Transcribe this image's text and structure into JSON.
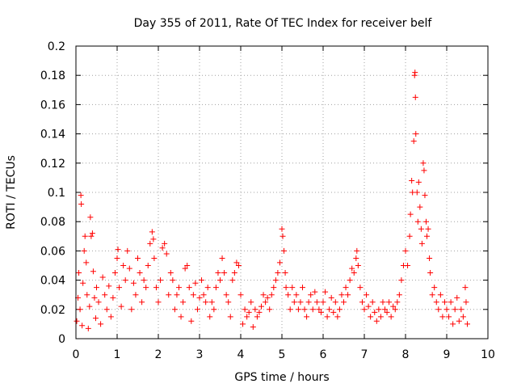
{
  "chart_data": {
    "type": "scatter",
    "title": "Day 355 of 2011, Rate Of TEC Index for receiver belf",
    "xlabel": "GPS time / hours",
    "ylabel": "ROTI / TECUs",
    "xlim": [
      0,
      10
    ],
    "ylim": [
      0,
      0.2
    ],
    "xticks": [
      0,
      1,
      2,
      3,
      4,
      5,
      6,
      7,
      8,
      9,
      10
    ],
    "yticks": [
      0,
      0.02,
      0.04,
      0.06,
      0.08,
      0.1,
      0.12,
      0.14,
      0.16,
      0.18,
      0.2
    ],
    "xtick_labels": [
      "0",
      "1",
      "2",
      "3",
      "4",
      "5",
      "6",
      "7",
      "8",
      "9",
      "10"
    ],
    "ytick_labels": [
      "0",
      "0.02",
      "0.04",
      "0.06",
      "0.08",
      "0.1",
      "0.12",
      "0.14",
      "0.16",
      "0.18",
      "0.2"
    ],
    "grid": true,
    "marker": "+",
    "marker_color": "#ff0000",
    "series": [
      {
        "name": "ROTI",
        "points": [
          [
            0.02,
            0.012
          ],
          [
            0.05,
            0.028
          ],
          [
            0.07,
            0.045
          ],
          [
            0.1,
            0.02
          ],
          [
            0.12,
            0.098
          ],
          [
            0.13,
            0.092
          ],
          [
            0.15,
            0.009
          ],
          [
            0.17,
            0.038
          ],
          [
            0.2,
            0.06
          ],
          [
            0.22,
            0.07
          ],
          [
            0.25,
            0.052
          ],
          [
            0.27,
            0.03
          ],
          [
            0.3,
            0.007
          ],
          [
            0.33,
            0.022
          ],
          [
            0.35,
            0.083
          ],
          [
            0.37,
            0.07
          ],
          [
            0.4,
            0.072
          ],
          [
            0.42,
            0.046
          ],
          [
            0.45,
            0.028
          ],
          [
            0.48,
            0.014
          ],
          [
            0.5,
            0.035
          ],
          [
            0.55,
            0.025
          ],
          [
            0.6,
            0.01
          ],
          [
            0.65,
            0.042
          ],
          [
            0.7,
            0.03
          ],
          [
            0.75,
            0.02
          ],
          [
            0.8,
            0.036
          ],
          [
            0.85,
            0.015
          ],
          [
            0.9,
            0.028
          ],
          [
            0.95,
            0.045
          ],
          [
            1.0,
            0.055
          ],
          [
            1.02,
            0.061
          ],
          [
            1.05,
            0.035
          ],
          [
            1.1,
            0.022
          ],
          [
            1.15,
            0.05
          ],
          [
            1.2,
            0.04
          ],
          [
            1.25,
            0.06
          ],
          [
            1.3,
            0.048
          ],
          [
            1.35,
            0.02
          ],
          [
            1.4,
            0.038
          ],
          [
            1.45,
            0.03
          ],
          [
            1.5,
            0.055
          ],
          [
            1.55,
            0.045
          ],
          [
            1.6,
            0.025
          ],
          [
            1.65,
            0.04
          ],
          [
            1.7,
            0.035
          ],
          [
            1.75,
            0.05
          ],
          [
            1.8,
            0.065
          ],
          [
            1.85,
            0.073
          ],
          [
            1.88,
            0.068
          ],
          [
            1.9,
            0.055
          ],
          [
            1.95,
            0.035
          ],
          [
            2.0,
            0.025
          ],
          [
            2.05,
            0.04
          ],
          [
            2.1,
            0.062
          ],
          [
            2.15,
            0.065
          ],
          [
            2.2,
            0.058
          ],
          [
            2.25,
            0.03
          ],
          [
            2.3,
            0.045
          ],
          [
            2.35,
            0.04
          ],
          [
            2.4,
            0.02
          ],
          [
            2.45,
            0.03
          ],
          [
            2.5,
            0.035
          ],
          [
            2.55,
            0.015
          ],
          [
            2.6,
            0.025
          ],
          [
            2.65,
            0.048
          ],
          [
            2.7,
            0.05
          ],
          [
            2.75,
            0.035
          ],
          [
            2.8,
            0.012
          ],
          [
            2.85,
            0.03
          ],
          [
            2.9,
            0.038
          ],
          [
            2.95,
            0.02
          ],
          [
            3.0,
            0.028
          ],
          [
            3.05,
            0.04
          ],
          [
            3.1,
            0.03
          ],
          [
            3.15,
            0.025
          ],
          [
            3.2,
            0.035
          ],
          [
            3.25,
            0.015
          ],
          [
            3.3,
            0.025
          ],
          [
            3.35,
            0.02
          ],
          [
            3.4,
            0.035
          ],
          [
            3.45,
            0.045
          ],
          [
            3.5,
            0.04
          ],
          [
            3.55,
            0.055
          ],
          [
            3.6,
            0.045
          ],
          [
            3.65,
            0.03
          ],
          [
            3.7,
            0.025
          ],
          [
            3.75,
            0.015
          ],
          [
            3.8,
            0.04
          ],
          [
            3.85,
            0.045
          ],
          [
            3.9,
            0.052
          ],
          [
            3.95,
            0.05
          ],
          [
            4.0,
            0.03
          ],
          [
            4.05,
            0.01
          ],
          [
            4.1,
            0.02
          ],
          [
            4.15,
            0.015
          ],
          [
            4.2,
            0.018
          ],
          [
            4.25,
            0.025
          ],
          [
            4.3,
            0.008
          ],
          [
            4.35,
            0.02
          ],
          [
            4.4,
            0.015
          ],
          [
            4.45,
            0.018
          ],
          [
            4.5,
            0.022
          ],
          [
            4.55,
            0.03
          ],
          [
            4.6,
            0.025
          ],
          [
            4.65,
            0.028
          ],
          [
            4.7,
            0.02
          ],
          [
            4.75,
            0.03
          ],
          [
            4.8,
            0.035
          ],
          [
            4.85,
            0.04
          ],
          [
            4.9,
            0.045
          ],
          [
            4.95,
            0.052
          ],
          [
            5.0,
            0.075
          ],
          [
            5.02,
            0.07
          ],
          [
            5.05,
            0.06
          ],
          [
            5.08,
            0.045
          ],
          [
            5.1,
            0.035
          ],
          [
            5.15,
            0.03
          ],
          [
            5.2,
            0.02
          ],
          [
            5.25,
            0.035
          ],
          [
            5.3,
            0.025
          ],
          [
            5.35,
            0.03
          ],
          [
            5.4,
            0.02
          ],
          [
            5.45,
            0.025
          ],
          [
            5.5,
            0.035
          ],
          [
            5.55,
            0.02
          ],
          [
            5.6,
            0.015
          ],
          [
            5.65,
            0.025
          ],
          [
            5.7,
            0.03
          ],
          [
            5.75,
            0.02
          ],
          [
            5.8,
            0.032
          ],
          [
            5.85,
            0.025
          ],
          [
            5.9,
            0.02
          ],
          [
            5.95,
            0.018
          ],
          [
            6.0,
            0.025
          ],
          [
            6.05,
            0.032
          ],
          [
            6.1,
            0.015
          ],
          [
            6.15,
            0.02
          ],
          [
            6.2,
            0.028
          ],
          [
            6.25,
            0.018
          ],
          [
            6.3,
            0.025
          ],
          [
            6.35,
            0.015
          ],
          [
            6.4,
            0.02
          ],
          [
            6.45,
            0.03
          ],
          [
            6.5,
            0.025
          ],
          [
            6.55,
            0.035
          ],
          [
            6.6,
            0.03
          ],
          [
            6.65,
            0.04
          ],
          [
            6.7,
            0.048
          ],
          [
            6.75,
            0.045
          ],
          [
            6.8,
            0.055
          ],
          [
            6.82,
            0.06
          ],
          [
            6.85,
            0.05
          ],
          [
            6.9,
            0.035
          ],
          [
            6.95,
            0.025
          ],
          [
            7.0,
            0.02
          ],
          [
            7.05,
            0.03
          ],
          [
            7.1,
            0.022
          ],
          [
            7.15,
            0.015
          ],
          [
            7.2,
            0.025
          ],
          [
            7.25,
            0.018
          ],
          [
            7.3,
            0.012
          ],
          [
            7.35,
            0.02
          ],
          [
            7.4,
            0.015
          ],
          [
            7.45,
            0.025
          ],
          [
            7.5,
            0.02
          ],
          [
            7.55,
            0.018
          ],
          [
            7.6,
            0.025
          ],
          [
            7.65,
            0.015
          ],
          [
            7.7,
            0.022
          ],
          [
            7.75,
            0.02
          ],
          [
            7.8,
            0.025
          ],
          [
            7.85,
            0.03
          ],
          [
            7.9,
            0.04
          ],
          [
            7.95,
            0.05
          ],
          [
            8.0,
            0.06
          ],
          [
            8.05,
            0.05
          ],
          [
            8.1,
            0.07
          ],
          [
            8.12,
            0.085
          ],
          [
            8.15,
            0.108
          ],
          [
            8.17,
            0.1
          ],
          [
            8.2,
            0.135
          ],
          [
            8.22,
            0.18
          ],
          [
            8.23,
            0.182
          ],
          [
            8.24,
            0.165
          ],
          [
            8.25,
            0.14
          ],
          [
            8.28,
            0.1
          ],
          [
            8.3,
            0.08
          ],
          [
            8.32,
            0.107
          ],
          [
            8.35,
            0.09
          ],
          [
            8.38,
            0.075
          ],
          [
            8.4,
            0.065
          ],
          [
            8.43,
            0.12
          ],
          [
            8.45,
            0.115
          ],
          [
            8.47,
            0.098
          ],
          [
            8.5,
            0.08
          ],
          [
            8.52,
            0.07
          ],
          [
            8.55,
            0.075
          ],
          [
            8.58,
            0.055
          ],
          [
            8.6,
            0.045
          ],
          [
            8.65,
            0.03
          ],
          [
            8.7,
            0.035
          ],
          [
            8.75,
            0.025
          ],
          [
            8.8,
            0.02
          ],
          [
            8.85,
            0.03
          ],
          [
            8.9,
            0.015
          ],
          [
            8.95,
            0.025
          ],
          [
            9.0,
            0.02
          ],
          [
            9.05,
            0.015
          ],
          [
            9.1,
            0.025
          ],
          [
            9.15,
            0.01
          ],
          [
            9.2,
            0.02
          ],
          [
            9.25,
            0.028
          ],
          [
            9.3,
            0.012
          ],
          [
            9.35,
            0.02
          ],
          [
            9.4,
            0.015
          ],
          [
            9.45,
            0.035
          ],
          [
            9.47,
            0.025
          ],
          [
            9.5,
            0.01
          ]
        ]
      }
    ]
  }
}
